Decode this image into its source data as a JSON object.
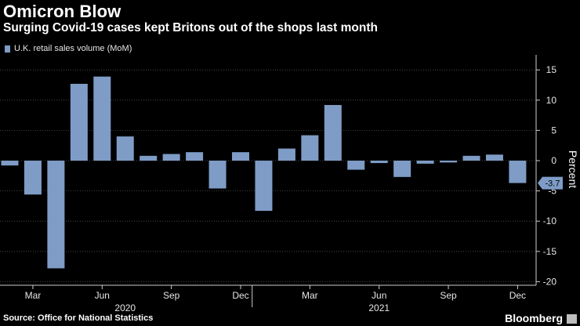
{
  "title": "Omicron Blow",
  "subtitle": "Surging Covid-19 cases kept Britons out of the shops last month",
  "legend": {
    "label": "U.K. retail sales volume (MoM)",
    "color": "#7e9cc6"
  },
  "source": "Source: Office for National Statistics",
  "brand": "Bloomberg",
  "brand_badge": "",
  "chart_data": {
    "type": "bar",
    "title": "Omicron Blow",
    "subtitle": "Surging Covid-19 cases kept Britons out of the shops last month",
    "ylabel": "Percent",
    "xlabel": "",
    "ylim": [
      -20.5,
      17
    ],
    "yticks": [
      15,
      10,
      5,
      0,
      -5,
      -10,
      -15,
      -20
    ],
    "grid": true,
    "legend_position": "top-left",
    "months": [
      "Feb 2020",
      "Mar 2020",
      "Apr 2020",
      "May 2020",
      "Jun 2020",
      "Jul 2020",
      "Aug 2020",
      "Sep 2020",
      "Oct 2020",
      "Nov 2020",
      "Dec 2020",
      "Jan 2021",
      "Feb 2021",
      "Mar 2021",
      "Apr 2021",
      "May 2021",
      "Jun 2021",
      "Jul 2021",
      "Aug 2021",
      "Sep 2021",
      "Oct 2021",
      "Nov 2021",
      "Dec 2021"
    ],
    "series": [
      {
        "name": "U.K. retail sales volume (MoM)",
        "values": [
          -0.8,
          -5.6,
          -17.8,
          12.7,
          13.9,
          4.0,
          0.8,
          1.1,
          1.4,
          -4.6,
          1.4,
          -8.3,
          2.0,
          4.2,
          9.2,
          -1.5,
          -0.4,
          -2.7,
          -0.5,
          -0.3,
          0.8,
          1.0,
          -3.7
        ]
      }
    ],
    "x_tick_labels": [
      {
        "label": "Mar",
        "index": 1
      },
      {
        "label": "Jun",
        "index": 4
      },
      {
        "label": "Sep",
        "index": 7
      },
      {
        "label": "Dec",
        "index": 10
      },
      {
        "label": "Mar",
        "index": 13
      },
      {
        "label": "Jun",
        "index": 16
      },
      {
        "label": "Sep",
        "index": 19
      },
      {
        "label": "Dec",
        "index": 22
      }
    ],
    "year_labels": [
      {
        "label": "2020",
        "index": 5
      },
      {
        "label": "2021",
        "index": 16
      }
    ],
    "last_value_label": "-3.7"
  }
}
